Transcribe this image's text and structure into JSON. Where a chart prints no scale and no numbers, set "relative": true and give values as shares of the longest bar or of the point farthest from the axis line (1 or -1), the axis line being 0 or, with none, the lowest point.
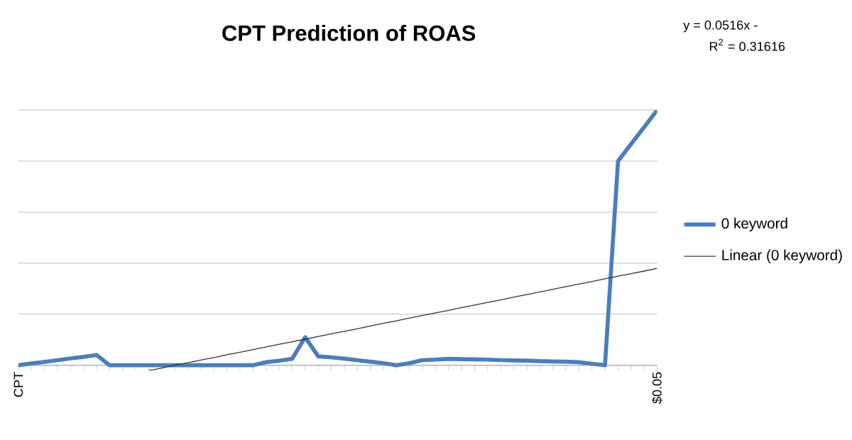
{
  "chart_data": {
    "type": "line",
    "title": "CPT Prediction of ROAS",
    "categories": [
      "CPT",
      null,
      null,
      null,
      null,
      null,
      null,
      null,
      null,
      null,
      null,
      null,
      null,
      null,
      null,
      null,
      null,
      null,
      null,
      null,
      null,
      null,
      null,
      null,
      null,
      null,
      null,
      null,
      null,
      null,
      null,
      null,
      null,
      null,
      null,
      null,
      null,
      null,
      null,
      null,
      null,
      null,
      null,
      null,
      null,
      null,
      null,
      null,
      null,
      "$0.05"
    ],
    "relative": true,
    "grid": "y",
    "legend": "right",
    "annotations": [
      "y = 0.0516x -",
      "R$^{2}$ = 0.31616"
    ],
    "series": [
      {
        "name": "0 keyword",
        "color": "#4a7ebb",
        "values": [
          0,
          0.007,
          0.013,
          0.02,
          0.027,
          0.033,
          0.04,
          0,
          0,
          0,
          0,
          0,
          0,
          0,
          0,
          0,
          0,
          0,
          0,
          0.012,
          0.018,
          0.025,
          0.11,
          0.035,
          0.031,
          0.026,
          0.02,
          0.014,
          0.008,
          0,
          0.008,
          0.02,
          0.022,
          0.025,
          0.024,
          0.023,
          0.022,
          0.02,
          0.019,
          0.018,
          0.016,
          0.015,
          0.014,
          0.012,
          0.006,
          0,
          0.8,
          0.867,
          0.933,
          1
        ]
      },
      {
        "name": "Linear (0 keyword)",
        "color": "#333333",
        "values": [
          null,
          null,
          null,
          null,
          null,
          null,
          null,
          null,
          null,
          null,
          -0.021,
          -0.011,
          0.0,
          0.01,
          0.02,
          0.03,
          0.041,
          0.051,
          0.061,
          0.072,
          0.082,
          0.092,
          0.102,
          0.113,
          0.123,
          0.133,
          0.143,
          0.154,
          0.164,
          0.174,
          0.185,
          0.195,
          0.205,
          0.215,
          0.226,
          0.236,
          0.246,
          0.256,
          0.267,
          0.277,
          0.287,
          0.298,
          0.308,
          0.318,
          0.328,
          0.339,
          0.349,
          0.359,
          0.369,
          0.38
        ]
      }
    ]
  }
}
